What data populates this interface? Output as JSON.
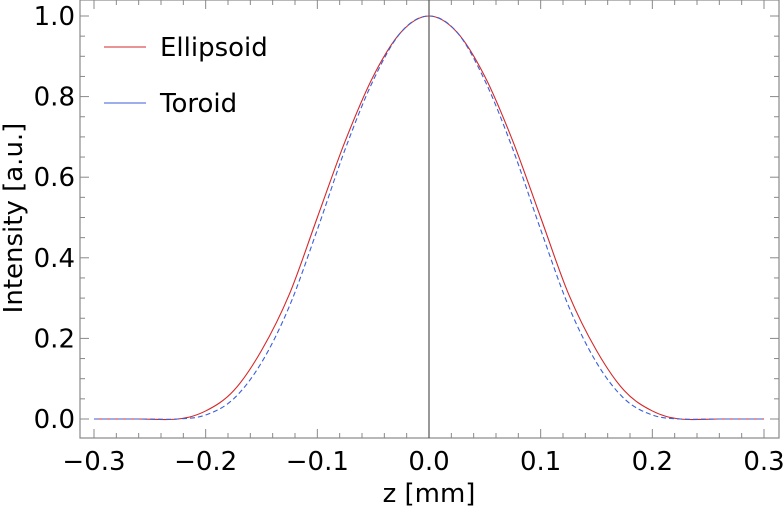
{
  "chart_data": {
    "type": "line",
    "title": "",
    "xlabel": "z [mm]",
    "ylabel": "Intensity [a.u.]",
    "xlim": [
      -0.3,
      0.3
    ],
    "ylim": [
      0.0,
      1.0
    ],
    "xticks": [
      -0.3,
      -0.2,
      -0.1,
      0.0,
      0.1,
      0.2,
      0.3
    ],
    "xtick_labels": [
      "−0.3",
      "−0.2",
      "−0.1",
      "0.0",
      "0.1",
      "0.2",
      "0.3"
    ],
    "yticks": [
      0.0,
      0.2,
      0.4,
      0.6,
      0.8,
      1.0
    ],
    "ytick_labels": [
      "0.0",
      "0.2",
      "0.4",
      "0.6",
      "0.8",
      "1.0"
    ],
    "grid": false,
    "legend_position": "top-left",
    "vertical_reference_line_x": 0.0,
    "series": [
      {
        "name": "Ellipsoid",
        "color": "#d62728",
        "style": "solid",
        "x": [
          -0.3,
          -0.26,
          -0.225,
          -0.2,
          -0.175,
          -0.15,
          -0.125,
          -0.1,
          -0.075,
          -0.05,
          -0.025,
          0.0,
          0.025,
          0.05,
          0.075,
          0.1,
          0.125,
          0.15,
          0.175,
          0.2,
          0.225,
          0.26,
          0.3
        ],
        "y": [
          0.0,
          0.0,
          0.0,
          0.02,
          0.07,
          0.17,
          0.31,
          0.5,
          0.69,
          0.85,
          0.96,
          1.0,
          0.96,
          0.85,
          0.69,
          0.5,
          0.31,
          0.17,
          0.07,
          0.02,
          0.0,
          0.0,
          0.0
        ]
      },
      {
        "name": "Toroid",
        "color": "#3a5fd9",
        "style": "dashed",
        "x": [
          -0.3,
          -0.26,
          -0.225,
          -0.2,
          -0.175,
          -0.15,
          -0.125,
          -0.1,
          -0.075,
          -0.05,
          -0.025,
          0.0,
          0.025,
          0.05,
          0.075,
          0.1,
          0.125,
          0.15,
          0.175,
          0.2,
          0.225,
          0.26,
          0.3
        ],
        "y": [
          0.0,
          0.0,
          0.0,
          0.01,
          0.05,
          0.14,
          0.28,
          0.47,
          0.67,
          0.84,
          0.96,
          1.0,
          0.96,
          0.84,
          0.67,
          0.47,
          0.28,
          0.14,
          0.05,
          0.01,
          0.0,
          0.0,
          0.0
        ]
      }
    ]
  }
}
